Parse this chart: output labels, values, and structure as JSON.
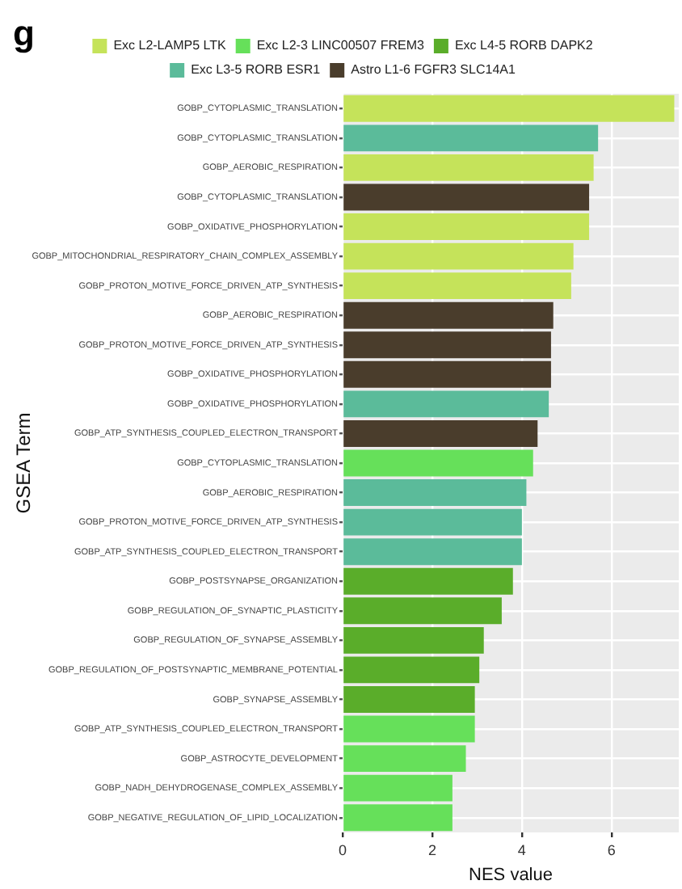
{
  "chart_data": {
    "type": "bar",
    "orientation": "horizontal",
    "annotations": [
      "g"
    ],
    "xlabel": "NES value",
    "ylabel": "GSEA Term",
    "categories": [
      "GOBP_CYTOPLASMIC_TRANSLATION",
      "GOBP_CYTOPLASMIC_TRANSLATION",
      "GOBP_AEROBIC_RESPIRATION",
      "GOBP_CYTOPLASMIC_TRANSLATION",
      "GOBP_OXIDATIVE_PHOSPHORYLATION",
      "GOBP_MITOCHONDRIAL_RESPIRATORY_CHAIN_COMPLEX_ASSEMBLY",
      "GOBP_PROTON_MOTIVE_FORCE_DRIVEN_ATP_SYNTHESIS",
      "GOBP_AEROBIC_RESPIRATION",
      "GOBP_PROTON_MOTIVE_FORCE_DRIVEN_ATP_SYNTHESIS",
      "GOBP_OXIDATIVE_PHOSPHORYLATION",
      "GOBP_OXIDATIVE_PHOSPHORYLATION",
      "GOBP_ATP_SYNTHESIS_COUPLED_ELECTRON_TRANSPORT",
      "GOBP_CYTOPLASMIC_TRANSLATION",
      "GOBP_AEROBIC_RESPIRATION",
      "GOBP_PROTON_MOTIVE_FORCE_DRIVEN_ATP_SYNTHESIS",
      "GOBP_ATP_SYNTHESIS_COUPLED_ELECTRON_TRANSPORT",
      "GOBP_POSTSYNAPSE_ORGANIZATION",
      "GOBP_REGULATION_OF_SYNAPTIC_PLASTICITY",
      "GOBP_REGULATION_OF_SYNAPSE_ASSEMBLY",
      "GOBP_REGULATION_OF_POSTSYNAPTIC_MEMBRANE_POTENTIAL",
      "GOBP_SYNAPSE_ASSEMBLY",
      "GOBP_ATP_SYNTHESIS_COUPLED_ELECTRON_TRANSPORT",
      "GOBP_ASTROCYTE_DEVELOPMENT",
      "GOBP_NADH_DEHYDROGENASE_COMPLEX_ASSEMBLY",
      "GOBP_NEGATIVE_REGULATION_OF_LIPID_LOCALIZATION"
    ],
    "series": [
      {
        "name": "Exc L2-LAMP5 LTK",
        "color": "#c5e35a",
        "values": [
          7.4,
          null,
          5.6,
          null,
          5.5,
          5.15,
          5.1,
          null,
          null,
          null,
          null,
          null,
          null,
          null,
          null,
          null,
          null,
          null,
          null,
          null,
          null,
          null,
          null,
          null,
          null
        ]
      },
      {
        "name": "Exc L2-3 LINC00507 FREM3",
        "color": "#66e05a",
        "values": [
          null,
          null,
          null,
          null,
          null,
          null,
          null,
          null,
          null,
          null,
          null,
          null,
          4.25,
          null,
          null,
          null,
          null,
          null,
          null,
          null,
          null,
          2.95,
          2.75,
          2.45,
          2.45
        ]
      },
      {
        "name": "Exc L4-5 RORB DAPK2",
        "color": "#5aad2a",
        "values": [
          null,
          null,
          null,
          null,
          null,
          null,
          null,
          null,
          null,
          null,
          null,
          null,
          null,
          null,
          null,
          null,
          3.8,
          3.55,
          3.15,
          3.05,
          2.95,
          null,
          null,
          null,
          null
        ]
      },
      {
        "name": "Exc L3-5 RORB ESR1",
        "color": "#5bbb9a",
        "values": [
          null,
          5.7,
          null,
          null,
          null,
          null,
          null,
          null,
          null,
          null,
          4.6,
          null,
          null,
          4.1,
          4.0,
          4.0,
          null,
          null,
          null,
          null,
          null,
          null,
          null,
          null,
          null
        ]
      },
      {
        "name": "Astro L1-6 FGFR3 SLC14A1",
        "color": "#4a3d2c",
        "values": [
          null,
          null,
          null,
          5.5,
          null,
          null,
          null,
          4.7,
          4.65,
          4.65,
          null,
          4.35,
          null,
          null,
          null,
          null,
          null,
          null,
          null,
          null,
          null,
          null,
          null,
          null,
          null
        ]
      }
    ],
    "xlim": [
      0,
      7.5
    ],
    "xticks": [
      0,
      2,
      4,
      6
    ],
    "grid": true,
    "legend": "top"
  }
}
